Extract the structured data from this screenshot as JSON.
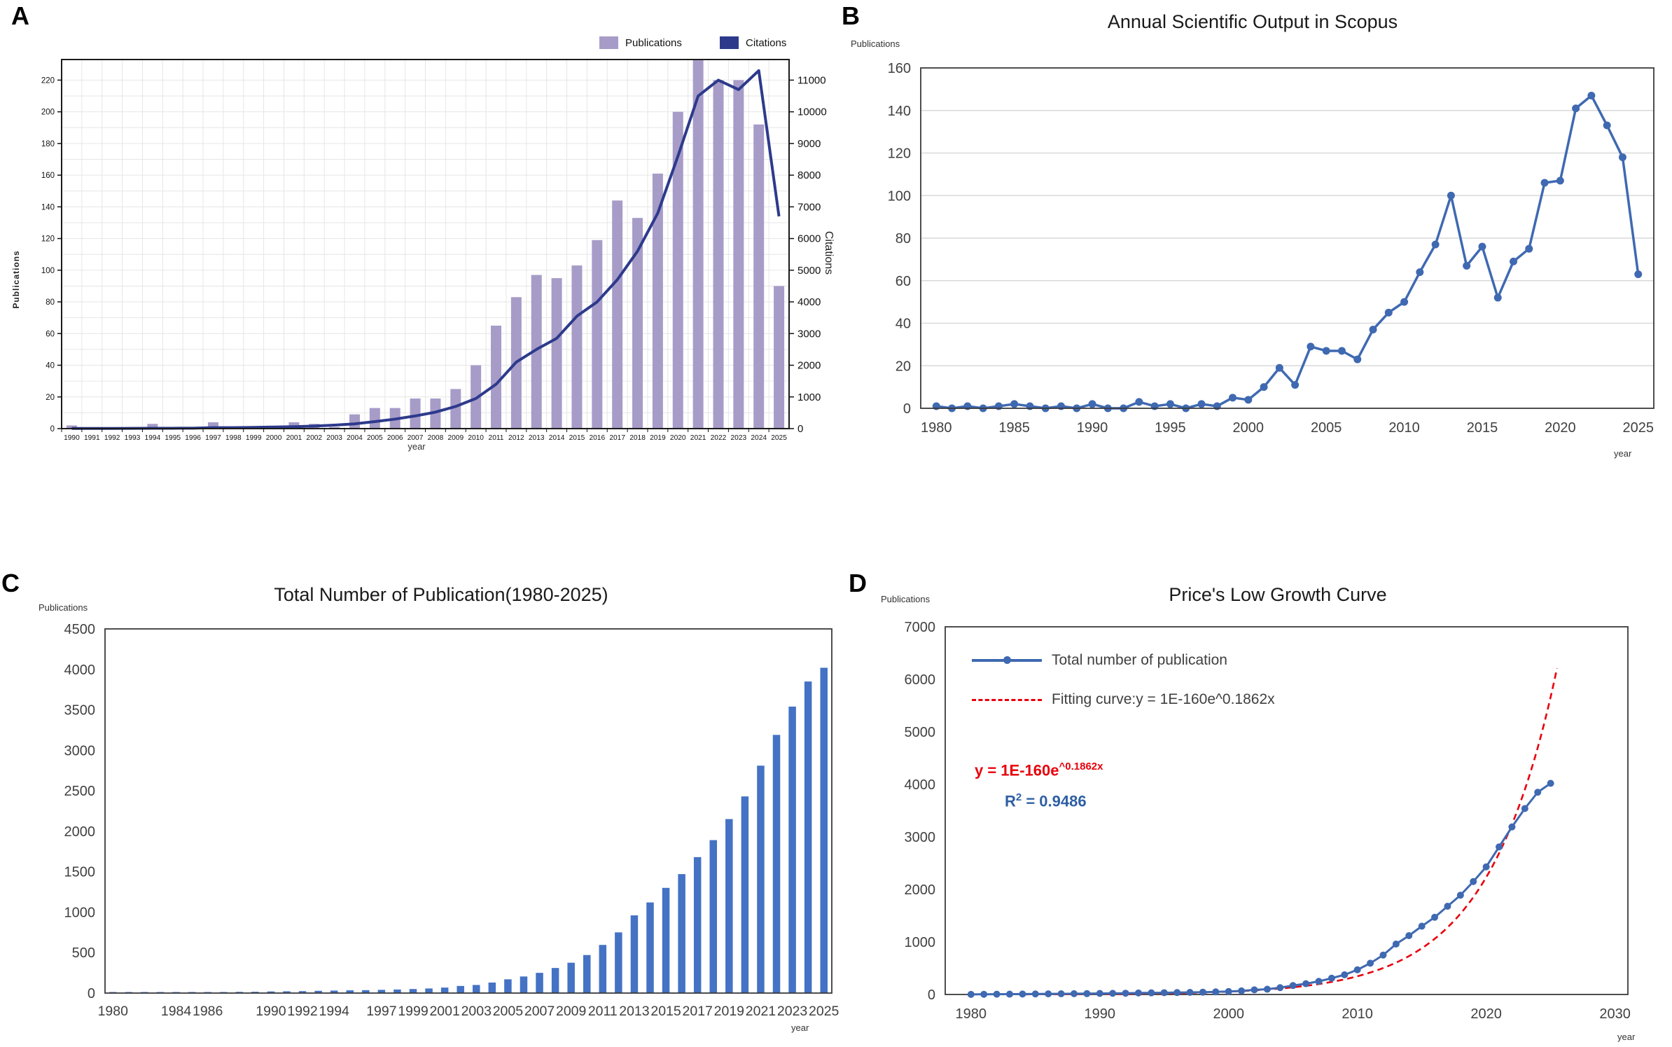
{
  "chart_data": [
    {
      "type": "bar",
      "panel_label": "A",
      "xlabel": "year",
      "ylabel_left": "Publications",
      "ylabel_right": "Citations",
      "categories": [
        1990,
        1991,
        1992,
        1993,
        1994,
        1995,
        1996,
        1997,
        1998,
        1999,
        2000,
        2001,
        2002,
        2003,
        2004,
        2005,
        2006,
        2007,
        2008,
        2009,
        2010,
        2011,
        2012,
        2013,
        2014,
        2015,
        2016,
        2017,
        2018,
        2019,
        2020,
        2021,
        2022,
        2023,
        2024,
        2025
      ],
      "series": [
        {
          "name": "Publications",
          "type": "bar",
          "axis": "left",
          "color": "#a79cc8",
          "values": [
            2,
            0,
            0,
            0,
            3,
            0,
            0,
            4,
            0,
            0,
            0,
            4,
            3,
            1,
            9,
            13,
            13,
            19,
            19,
            25,
            40,
            65,
            83,
            97,
            95,
            103,
            119,
            144,
            133,
            161,
            200,
            236,
            220,
            220,
            192,
            90
          ]
        },
        {
          "name": "Citations",
          "type": "line",
          "axis": "right",
          "color": "#2d3a8c",
          "values": [
            5,
            5,
            5,
            8,
            10,
            12,
            15,
            30,
            30,
            40,
            50,
            60,
            80,
            110,
            150,
            220,
            300,
            400,
            520,
            700,
            950,
            1400,
            2100,
            2500,
            2850,
            3550,
            4000,
            4700,
            5600,
            6800,
            8600,
            10500,
            11000,
            10700,
            11300,
            6700
          ]
        }
      ],
      "legend": [
        {
          "label": "Publications",
          "color": "#a79cc8"
        },
        {
          "label": "Citations",
          "color": "#2d3a8c"
        }
      ],
      "ylim_left": [
        0,
        233
      ],
      "yticks_left": [
        0,
        20,
        40,
        60,
        80,
        100,
        120,
        140,
        160,
        180,
        200,
        220
      ],
      "ylim_right": [
        0,
        11650
      ],
      "yticks_right": [
        0,
        1000,
        2000,
        3000,
        4000,
        5000,
        6000,
        7000,
        8000,
        9000,
        10000,
        11000
      ],
      "grid": true,
      "legend_position": "top-right"
    },
    {
      "type": "line",
      "panel_label": "B",
      "title": "Annual Scientific Output in Scopus",
      "xlabel": "year",
      "ylabel": "Publications",
      "x": [
        1980,
        1981,
        1982,
        1983,
        1984,
        1985,
        1986,
        1987,
        1988,
        1989,
        1990,
        1991,
        1992,
        1993,
        1994,
        1995,
        1996,
        1997,
        1998,
        1999,
        2000,
        2001,
        2002,
        2003,
        2004,
        2005,
        2006,
        2007,
        2008,
        2009,
        2010,
        2011,
        2012,
        2013,
        2014,
        2015,
        2016,
        2017,
        2018,
        2019,
        2020,
        2021,
        2022,
        2023,
        2024,
        2025
      ],
      "series": [
        {
          "name": "Publications",
          "color": "#3f69b1",
          "marker": "circle",
          "values": [
            1,
            0,
            1,
            0,
            1,
            2,
            1,
            0,
            1,
            0,
            2,
            0,
            0,
            3,
            1,
            2,
            0,
            2,
            1,
            5,
            4,
            10,
            19,
            11,
            29,
            27,
            27,
            23,
            37,
            45,
            50,
            64,
            77,
            100,
            67,
            76,
            52,
            69,
            75,
            106,
            107,
            141,
            147,
            133,
            118,
            63
          ]
        }
      ],
      "ylim": [
        0,
        160
      ],
      "yticks": [
        0,
        20,
        40,
        60,
        80,
        100,
        120,
        140,
        160
      ],
      "xticks": [
        1980,
        1985,
        1990,
        1995,
        2000,
        2005,
        2010,
        2015,
        2020,
        2025
      ],
      "grid": "horizontal"
    },
    {
      "type": "bar",
      "panel_label": "C",
      "title": "Total Number of Publication(1980-2025)",
      "xlabel": "year",
      "ylabel": "Publications",
      "categories": [
        1980,
        1981,
        1982,
        1983,
        1984,
        1985,
        1986,
        1987,
        1988,
        1989,
        1990,
        1991,
        1992,
        1993,
        1994,
        1995,
        1996,
        1997,
        1998,
        1999,
        2000,
        2001,
        2002,
        2003,
        2004,
        2005,
        2006,
        2007,
        2008,
        2009,
        2010,
        2011,
        2012,
        2013,
        2014,
        2015,
        2016,
        2017,
        2018,
        2019,
        2020,
        2021,
        2022,
        2023,
        2024,
        2025
      ],
      "values": [
        2,
        3,
        5,
        6,
        8,
        10,
        12,
        13,
        15,
        16,
        20,
        22,
        24,
        28,
        31,
        34,
        36,
        40,
        44,
        50,
        57,
        68,
        88,
        100,
        130,
        170,
        205,
        250,
        310,
        375,
        470,
        595,
        750,
        960,
        1120,
        1300,
        1470,
        1680,
        1890,
        2150,
        2430,
        2810,
        3190,
        3540,
        3850,
        4020
      ],
      "color": "#4472c4",
      "ylim": [
        0,
        4500
      ],
      "yticks": [
        0,
        500,
        1000,
        1500,
        2000,
        2500,
        3000,
        3500,
        4000,
        4500
      ],
      "xtick_labels": [
        "1980",
        "1984",
        "1986",
        "1990",
        "1992",
        "1994",
        "1997",
        "1999",
        "2001",
        "2003",
        "2005",
        "2007",
        "2009",
        "2011",
        "2013",
        "2015",
        "2017",
        "2019",
        "2021",
        "2023",
        "2025"
      ],
      "grid": false
    },
    {
      "type": "line",
      "panel_label": "D",
      "title": "Price's Low Growth Curve",
      "xlabel": "year",
      "ylabel": "Publications",
      "x": [
        1980,
        1981,
        1982,
        1983,
        1984,
        1985,
        1986,
        1987,
        1988,
        1989,
        1990,
        1991,
        1992,
        1993,
        1994,
        1995,
        1996,
        1997,
        1998,
        1999,
        2000,
        2001,
        2002,
        2003,
        2004,
        2005,
        2006,
        2007,
        2008,
        2009,
        2010,
        2011,
        2012,
        2013,
        2014,
        2015,
        2016,
        2017,
        2018,
        2019,
        2020,
        2021,
        2022,
        2023,
        2024,
        2025
      ],
      "series": [
        {
          "name": "Total number of publication",
          "color": "#3f69b1",
          "marker": "circle",
          "values": [
            2,
            3,
            5,
            6,
            8,
            10,
            12,
            13,
            15,
            16,
            20,
            22,
            24,
            28,
            31,
            34,
            36,
            40,
            44,
            50,
            57,
            68,
            88,
            100,
            130,
            170,
            205,
            250,
            310,
            375,
            470,
            595,
            750,
            960,
            1120,
            1300,
            1470,
            1680,
            1890,
            2150,
            2430,
            2810,
            3190,
            3540,
            3850,
            4020
          ]
        }
      ],
      "fit_curve": {
        "label": "Fitting curve:y = 1E-160e^0.1862x",
        "color": "#e8000b",
        "coef_power_of_ten": -160,
        "exponent_rate": 0.1862,
        "clip_y": 6500
      },
      "legend": [
        {
          "label": "Total number of publication",
          "color": "#3f69b1"
        },
        {
          "label": "Fitting curve:y = 1E-160e^0.1862x",
          "color": "#e8000b"
        }
      ],
      "annotation_fit": {
        "main": "y = 1E-160e",
        "sup": "^0.1862x"
      },
      "annotation_r2": {
        "main": "R",
        "sup": "2",
        "rest": " = 0.9486"
      },
      "ylim": [
        0,
        7000
      ],
      "yticks": [
        0,
        1000,
        2000,
        3000,
        4000,
        5000,
        6000,
        7000
      ],
      "xlim": [
        1978,
        2031
      ],
      "xticks": [
        1980,
        1990,
        2000,
        2010,
        2020,
        2030
      ],
      "grid": false
    }
  ]
}
